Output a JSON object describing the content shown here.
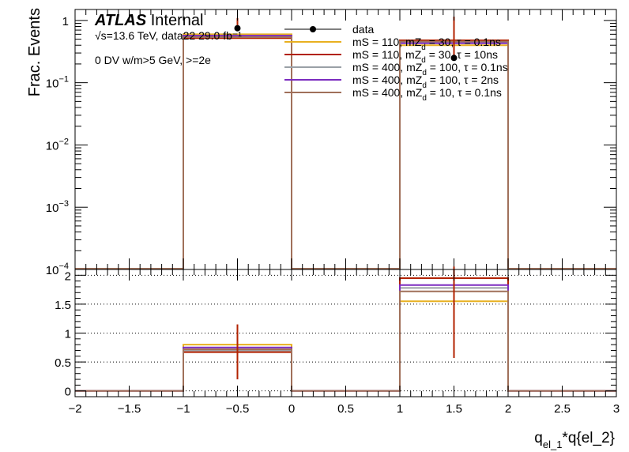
{
  "annotations": {
    "atlas": "ATLAS",
    "internal": "Internal",
    "energy": "√s=13.6 TeV, data22 29.0 fb⁻¹",
    "selection": "0 DV w/m>5 GeV, >=2e"
  },
  "chart_data": [
    {
      "type": "histogram",
      "panel": "top",
      "ylabel": "Frac. Events",
      "yscale": "log",
      "ylim": [
        0.0001,
        1.5
      ],
      "xlim": [
        -2,
        3
      ],
      "y_ticks": [
        {
          "value": 1,
          "label": "1",
          "exp": ""
        },
        {
          "value": 0.1,
          "label": "10",
          "exp": "−1"
        },
        {
          "value": 0.01,
          "label": "10",
          "exp": "−2"
        },
        {
          "value": 0.001,
          "label": "10",
          "exp": "−3"
        },
        {
          "value": 0.0001,
          "label": "10",
          "exp": "−4"
        }
      ],
      "bins": [
        [
          -1,
          0
        ],
        [
          1,
          2
        ]
      ],
      "series": [
        {
          "name": "data",
          "kind": "points",
          "color": "#000000",
          "x": [
            -0.5,
            1.5
          ],
          "values": [
            0.75,
            0.25
          ],
          "err_low": [
            0.0001,
            0.02
          ],
          "err_high": [
            0.35,
            0.9
          ]
        },
        {
          "name": "mS = 110, mZ_d = 30, τ = 0.1ns",
          "kind": "step",
          "color": "#e8b020",
          "values": [
            0.6,
            0.4
          ]
        },
        {
          "name": "mS = 110, mZ_d = 30, τ = 10ns",
          "kind": "step",
          "color": "#b22200",
          "values": [
            0.52,
            0.48
          ]
        },
        {
          "name": "mS = 400, mZ_d = 100, τ = 0.1ns",
          "kind": "step",
          "color": "#9aa0a6",
          "values": [
            0.55,
            0.45
          ]
        },
        {
          "name": "mS = 400, mZ_d = 100, τ = 2ns",
          "kind": "step",
          "color": "#7b2cbf",
          "values": [
            0.57,
            0.43
          ]
        },
        {
          "name": "mS = 400, mZ_d = 10, τ = 0.1ns",
          "kind": "step",
          "color": "#a0705a",
          "values": [
            0.54,
            0.46
          ]
        }
      ]
    },
    {
      "type": "histogram",
      "panel": "ratio",
      "ylim": [
        -0.1,
        2.1
      ],
      "xlim": [
        -2,
        3
      ],
      "xlabel": "q_el_1*q{el_2}",
      "y_ticks": [
        0,
        0.5,
        1,
        1.5,
        2
      ],
      "y_tick_labels": [
        "0",
        "0.5",
        "1",
        "1.5",
        "2"
      ],
      "x_ticks": [
        -2,
        -1.5,
        -1,
        -0.5,
        0,
        0.5,
        1,
        1.5,
        2,
        2.5,
        3
      ],
      "x_tick_labels": [
        "−2",
        "−1.5",
        "−1",
        "−0.5",
        "0",
        "0.5",
        "1",
        "1.5",
        "2",
        "2.5",
        "3"
      ],
      "bins": [
        [
          -1,
          0
        ],
        [
          1,
          2
        ]
      ],
      "series": [
        {
          "name": "data",
          "kind": "errorbar",
          "color": "#b22200",
          "x": [
            -0.5,
            1.5
          ],
          "values": [
            0.7,
            1.45
          ],
          "err_low": [
            0.5,
            0.88
          ],
          "err_high": [
            0.45,
            0.7
          ]
        },
        {
          "name": "mS = 110, mZ_d = 30, τ = 0.1ns",
          "kind": "step",
          "color": "#e8b020",
          "values": [
            0.8,
            1.55
          ]
        },
        {
          "name": "mS = 110, mZ_d = 30, τ = 10ns",
          "kind": "step",
          "color": "#b22200",
          "values": [
            0.67,
            1.95
          ]
        },
        {
          "name": "mS = 400, mZ_d = 100, τ = 0.1ns",
          "kind": "step",
          "color": "#9aa0a6",
          "values": [
            0.7,
            1.78
          ]
        },
        {
          "name": "mS = 400, mZ_d = 100, τ = 2ns",
          "kind": "step",
          "color": "#7b2cbf",
          "values": [
            0.75,
            1.83
          ]
        },
        {
          "name": "mS = 400, mZ_d = 10, τ = 0.1ns",
          "kind": "step",
          "color": "#a0705a",
          "values": [
            0.72,
            1.72
          ]
        }
      ]
    }
  ],
  "legend": [
    {
      "main": "data",
      "sub": "",
      "rest": "",
      "color": "#000000",
      "marker": "point"
    },
    {
      "main": "mS = 110, mZ",
      "sub": "d",
      "rest": " = 30, τ = 0.1ns",
      "color": "#e8b020",
      "marker": "line"
    },
    {
      "main": "mS = 110, mZ",
      "sub": "d",
      "rest": " = 30, τ = 10ns",
      "color": "#b22200",
      "marker": "line"
    },
    {
      "main": "mS = 400, mZ",
      "sub": "d",
      "rest": " = 100, τ = 0.1ns",
      "color": "#9aa0a6",
      "marker": "line"
    },
    {
      "main": "mS = 400, mZ",
      "sub": "d",
      "rest": " = 100, τ = 2ns",
      "color": "#7b2cbf",
      "marker": "line"
    },
    {
      "main": "mS = 400, mZ",
      "sub": "d",
      "rest": " = 10, τ = 0.1ns",
      "color": "#a0705a",
      "marker": "line"
    }
  ],
  "xlabel_parts": {
    "main": "q",
    "sub": "el_1",
    "rest": "*q{el_2}"
  }
}
